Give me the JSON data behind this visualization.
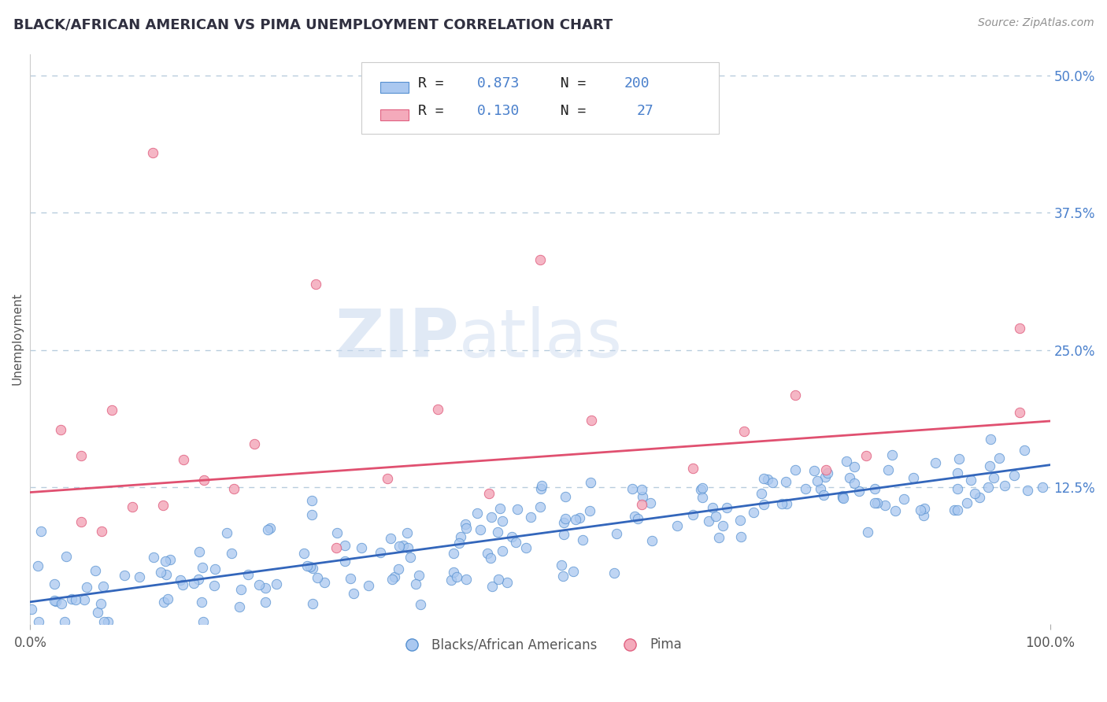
{
  "title": "BLACK/AFRICAN AMERICAN VS PIMA UNEMPLOYMENT CORRELATION CHART",
  "source_text": "Source: ZipAtlas.com",
  "ylabel": "Unemployment",
  "watermark_zip": "ZIP",
  "watermark_atlas": "atlas",
  "xlim": [
    0,
    100
  ],
  "ylim": [
    0,
    52
  ],
  "yticks": [
    0,
    12.5,
    25.0,
    37.5,
    50.0
  ],
  "ytick_labels": [
    "",
    "12.5%",
    "25.0%",
    "37.5%",
    "50.0%"
  ],
  "blue_R": 0.873,
  "blue_N": 200,
  "pink_R": 0.13,
  "pink_N": 27,
  "blue_fill_color": "#aac8f0",
  "pink_fill_color": "#f4aabb",
  "blue_edge_color": "#5590d0",
  "pink_edge_color": "#e06080",
  "blue_line_color": "#3366bb",
  "pink_line_color": "#e05070",
  "blue_label": "Blacks/African Americans",
  "pink_label": "Pima",
  "title_color": "#303040",
  "source_color": "#909090",
  "legend_text_color": "#4a80cc",
  "background_color": "#ffffff",
  "grid_color": "#b8ccdd",
  "right_tick_color": "#4a80cc",
  "blue_trend_x0": 0,
  "blue_trend_y0": 2.0,
  "blue_trend_x1": 100,
  "blue_trend_y1": 14.5,
  "pink_trend_x0": 0,
  "pink_trend_y0": 12.0,
  "pink_trend_x1": 100,
  "pink_trend_y1": 18.5
}
